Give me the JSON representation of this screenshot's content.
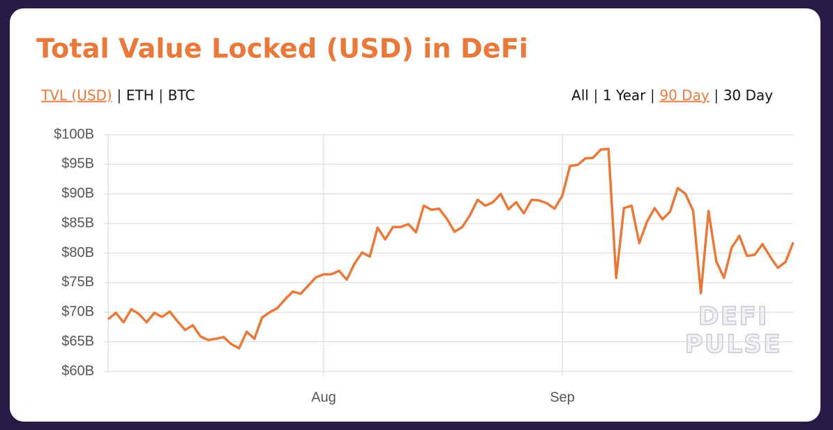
{
  "title": "Total Value Locked (USD) in DeFi",
  "metric_tabs": {
    "items": [
      "TVL (USD)",
      "ETH",
      "BTC"
    ],
    "selected": 0
  },
  "range_tabs": {
    "items": [
      "All",
      "1 Year",
      "90 Day",
      "30 Day"
    ],
    "selected": 2
  },
  "watermark": [
    "DEFI",
    "PULSE"
  ],
  "chart_data": {
    "type": "line",
    "color": "#e8793a",
    "categories": [
      null,
      null,
      null,
      null,
      null,
      null,
      null,
      null,
      null,
      null,
      null,
      null,
      null,
      null,
      null,
      null,
      null,
      null,
      null,
      null,
      null,
      null,
      null,
      null,
      null,
      null,
      null,
      null,
      "Aug",
      null,
      null,
      null,
      null,
      null,
      null,
      null,
      null,
      null,
      null,
      null,
      null,
      null,
      null,
      null,
      null,
      null,
      null,
      null,
      null,
      null,
      null,
      null,
      null,
      null,
      null,
      null,
      null,
      null,
      null,
      "Sep",
      null,
      null,
      null,
      null,
      null,
      null,
      null,
      null,
      null,
      null,
      null,
      null,
      null,
      null,
      null,
      null,
      null,
      null,
      null,
      null,
      null,
      null,
      null,
      null,
      null,
      null,
      null,
      null,
      null,
      null
    ],
    "values": [
      68.8,
      69.9,
      68.3,
      70.5,
      69.7,
      68.3,
      69.9,
      69.2,
      70.1,
      68.5,
      67.0,
      67.8,
      65.9,
      65.3,
      65.5,
      65.8,
      64.6,
      63.9,
      66.7,
      65.5,
      69.1,
      70.0,
      70.7,
      72.2,
      73.5,
      73.1,
      74.5,
      75.9,
      76.4,
      76.4,
      77.0,
      75.5,
      78.2,
      80.1,
      79.4,
      84.3,
      82.3,
      84.4,
      84.4,
      84.9,
      83.5,
      88.0,
      87.3,
      87.5,
      85.8,
      83.6,
      84.4,
      86.4,
      89.0,
      88.0,
      88.6,
      90.0,
      87.4,
      88.6,
      86.7,
      89.0,
      88.9,
      88.4,
      87.5,
      89.7,
      94.7,
      94.9,
      96.0,
      96.1,
      97.5,
      97.6,
      75.8,
      87.6,
      88.0,
      81.7,
      85.3,
      87.6,
      85.7,
      87.0,
      91.0,
      90.0,
      87.1,
      73.2,
      87.1,
      78.6,
      75.8,
      80.9,
      82.9,
      79.5,
      79.7,
      81.5,
      79.4,
      77.5,
      78.5,
      81.8
    ],
    "ylim": [
      60,
      100
    ],
    "yticks": [
      {
        "value": 60,
        "label": "$60B"
      },
      {
        "value": 65,
        "label": "$65B"
      },
      {
        "value": 70,
        "label": "$70B"
      },
      {
        "value": 75,
        "label": "$75B"
      },
      {
        "value": 80,
        "label": "$80B"
      },
      {
        "value": 85,
        "label": "$85B"
      },
      {
        "value": 90,
        "label": "$90B"
      },
      {
        "value": 95,
        "label": "$95B"
      },
      {
        "value": 100,
        "label": "$100B"
      }
    ],
    "grid": true
  }
}
